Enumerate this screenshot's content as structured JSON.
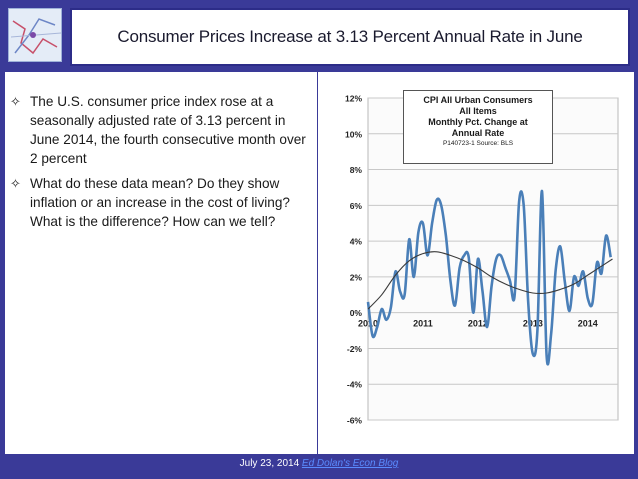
{
  "slide": {
    "title": "Consumer Prices Increase at 3.13 Percent Annual Rate in June",
    "bullets": [
      "The U.S. consumer price index rose at a seasonally adjusted rate of 3.13 percent in June 2014, the fourth consecutive month over 2 percent",
      "What do these data mean? Do they show inflation or an increase in the cost of living? What is the difference? How can we tell?"
    ],
    "bullet_symbol": "✧",
    "footer_date": "July 23, 2014",
    "footer_link": "Ed Dolan's Econ Blog"
  },
  "chart_data": {
    "type": "line",
    "title": "CPI All Urban Consumers",
    "title_lines": [
      "CPI All Urban Consumers",
      "All Items",
      "Monthly Pct. Change at",
      "Annual Rate"
    ],
    "source": "P140723-1 Source: BLS",
    "ylim": [
      -6,
      12
    ],
    "yticks": [
      -6,
      -4,
      -2,
      0,
      2,
      4,
      6,
      8,
      10,
      12
    ],
    "ytick_labels": [
      "-6%",
      "-4%",
      "-2%",
      "0%",
      "2%",
      "4%",
      "6%",
      "8%",
      "10%",
      "12%"
    ],
    "xlim": [
      2010.0,
      2014.55
    ],
    "xticks": [
      2010,
      2011,
      2012,
      2013,
      2014
    ],
    "xtick_labels": [
      "2010",
      "2011",
      "2012",
      "2013",
      "2014"
    ],
    "grid": "horizontal",
    "series": [
      {
        "color": "#4a7fb8",
        "x": [
          2010.0,
          2010.083,
          2010.167,
          2010.25,
          2010.333,
          2010.417,
          2010.5,
          2010.583,
          2010.667,
          2010.75,
          2010.833,
          2010.917,
          2011.0,
          2011.083,
          2011.167,
          2011.25,
          2011.333,
          2011.417,
          2011.5,
          2011.583,
          2011.667,
          2011.75,
          2011.833,
          2011.917,
          2012.0,
          2012.083,
          2012.167,
          2012.25,
          2012.333,
          2012.417,
          2012.5,
          2012.583,
          2012.667,
          2012.75,
          2012.833,
          2012.917,
          2013.0,
          2013.083,
          2013.167,
          2013.25,
          2013.333,
          2013.417,
          2013.5,
          2013.583,
          2013.667,
          2013.75,
          2013.833,
          2013.917,
          2014.0,
          2014.083,
          2014.167,
          2014.25,
          2014.333,
          2014.417
        ],
        "values": [
          0.6,
          -1.3,
          -0.8,
          0.2,
          -0.4,
          0.3,
          2.3,
          1.2,
          1.0,
          4.1,
          2.0,
          4.5,
          5.0,
          3.2,
          5.0,
          6.3,
          6.0,
          4.3,
          1.8,
          0.4,
          2.5,
          3.2,
          3.1,
          0.0,
          3.0,
          1.2,
          -0.8,
          1.5,
          3.0,
          3.2,
          2.5,
          1.8,
          0.9,
          6.2,
          6.0,
          0.5,
          -2.3,
          -1.0,
          6.8,
          -2.4,
          -1.2,
          2.4,
          3.7,
          1.7,
          0.1,
          2.0,
          1.5,
          2.3,
          0.8,
          0.5,
          2.8,
          2.2,
          4.3,
          3.1
        ]
      },
      {
        "color": "#3a3a3a",
        "x": [
          2010.0,
          2010.25,
          2010.5,
          2010.75,
          2011.0,
          2011.25,
          2011.5,
          2011.75,
          2012.0,
          2012.25,
          2012.5,
          2012.75,
          2013.0,
          2013.25,
          2013.5,
          2013.75,
          2014.0,
          2014.25,
          2014.45
        ],
        "values": [
          0.2,
          1.0,
          2.1,
          2.9,
          3.3,
          3.4,
          3.2,
          2.9,
          2.5,
          2.0,
          1.6,
          1.3,
          1.1,
          1.1,
          1.3,
          1.6,
          2.1,
          2.6,
          3.0
        ]
      }
    ]
  }
}
